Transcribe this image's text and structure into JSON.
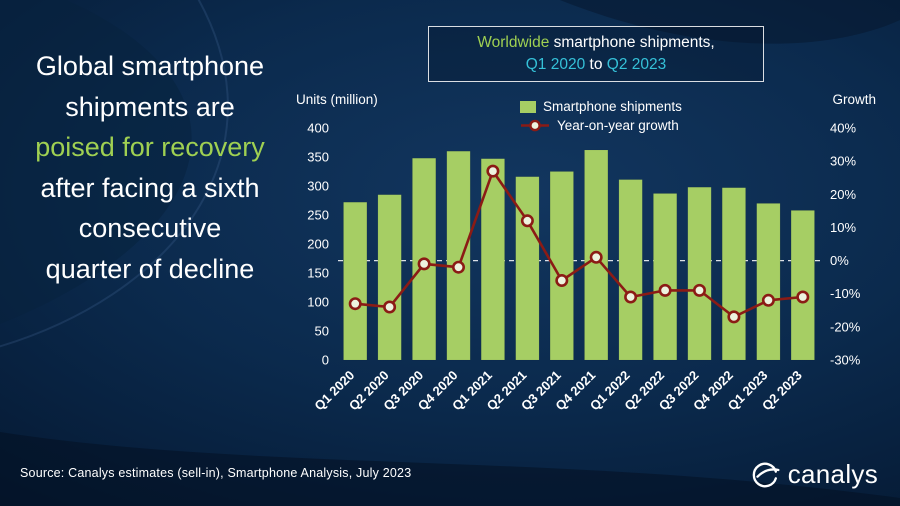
{
  "colors": {
    "accent_green": "#9fd052",
    "accent_cyan": "#35c1d8",
    "bar": "#a6ce64",
    "line": "#8b1b15",
    "marker_fill": "#edf3df"
  },
  "headline": {
    "pre": "Global smartphone shipments are ",
    "highlight": "poised for recovery",
    "post": " after facing a sixth consecutive quarter of decline"
  },
  "title_box": {
    "line1_highlight": "Worldwide",
    "line1_rest": " smartphone shipments,",
    "line2_start": "Q1 2020",
    "line2_mid": " to ",
    "line2_end": "Q2 2023"
  },
  "chart": {
    "units_label": "Units (million)",
    "growth_label": "Growth",
    "legend_bar_label": "Smartphone shipments",
    "legend_line_label": "Year-on-year growth"
  },
  "chart_data": {
    "type": "bar",
    "title": "Worldwide smartphone shipments, Q1 2020 to Q2 2023",
    "categories": [
      "Q1 2020",
      "Q2 2020",
      "Q3 2020",
      "Q4 2020",
      "Q1 2021",
      "Q2 2021",
      "Q3 2021",
      "Q4 2021",
      "Q1 2022",
      "Q2 2022",
      "Q3 2022",
      "Q4 2022",
      "Q1 2023",
      "Q2 2023"
    ],
    "series": [
      {
        "name": "Smartphone shipments",
        "type": "bar",
        "axis": "left",
        "values": [
          272,
          285,
          348,
          360,
          347,
          316,
          325,
          362,
          311,
          287,
          298,
          297,
          270,
          258
        ]
      },
      {
        "name": "Year-on-year growth",
        "type": "line",
        "axis": "right",
        "values": [
          -13,
          -14,
          -1,
          -2,
          27,
          12,
          -6,
          1,
          -11,
          -9,
          -9,
          -17,
          -12,
          -11
        ]
      }
    ],
    "left_axis": {
      "label": "Units (million)",
      "min": 0,
      "max": 400,
      "step": 50
    },
    "right_axis": {
      "label": "Growth",
      "min": -30,
      "max": 40,
      "step": 10,
      "suffix": "%"
    },
    "zero_line": true,
    "grid": false,
    "legend_position": "top"
  },
  "footer": {
    "source": "Source:  Canalys estimates (sell-in), Smartphone Analysis, July 2023",
    "logo_text": "canalys"
  }
}
